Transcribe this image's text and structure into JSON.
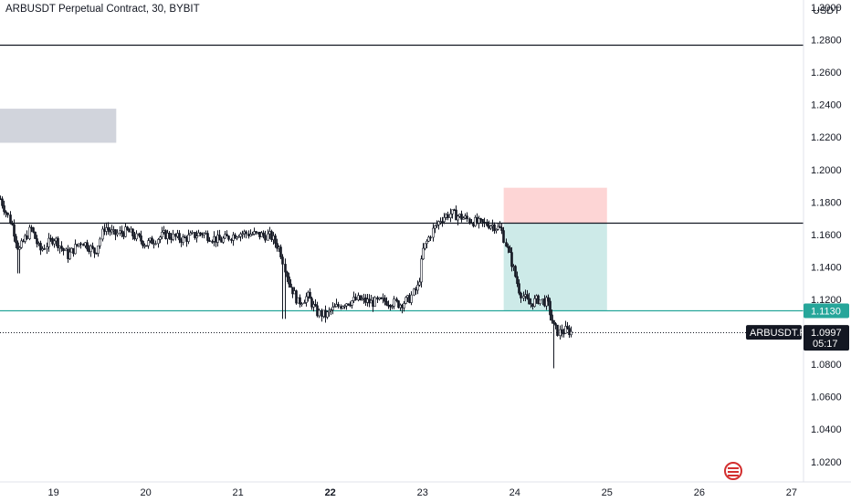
{
  "header": {
    "title": "ARBUSDT Perpetual Contract, 30, BYBIT"
  },
  "axis": {
    "currency": "USDT"
  },
  "current_price": {
    "symbol": "ARBUSDT.P",
    "value": "1.0997",
    "countdown": "05:17"
  },
  "level_label": {
    "value": "1.1130"
  },
  "colors": {
    "level_line": "#131722",
    "teal_line": "#26a69a",
    "profit_zone": "#cdeae8",
    "loss_zone": "#fdd5d5",
    "gray_box": "#d1d4dc",
    "teal_badge": "#26a69a",
    "price_badge": "#131722"
  },
  "chart_data": {
    "type": "candlestick",
    "title": "ARBUSDT Perpetual Contract, 30, BYBIT",
    "y_unit": "USDT",
    "y_ticks": [
      "1.3000",
      "1.2800",
      "1.2600",
      "1.2400",
      "1.2200",
      "1.2000",
      "1.1800",
      "1.1600",
      "1.1400",
      "1.1200",
      "1.0800",
      "1.0600",
      "1.0400",
      "1.0200"
    ],
    "y_range": [
      1.0075,
      1.3045
    ],
    "x_ticks": [
      {
        "label": "19",
        "day": 19,
        "bold": false
      },
      {
        "label": "20",
        "day": 20,
        "bold": false
      },
      {
        "label": "21",
        "day": 21,
        "bold": false
      },
      {
        "label": "22",
        "day": 22,
        "bold": true
      },
      {
        "label": "23",
        "day": 23,
        "bold": false
      },
      {
        "label": "24",
        "day": 24,
        "bold": false
      },
      {
        "label": "25",
        "day": 25,
        "bold": false
      },
      {
        "label": "26",
        "day": 26,
        "bold": false
      },
      {
        "label": "27",
        "day": 27,
        "bold": false
      }
    ],
    "x_range": [
      18.42,
      27.13
    ],
    "horizontal_lines": [
      {
        "price": 1.2771,
        "color": "#131722"
      },
      {
        "price": 1.1672,
        "color": "#131722"
      },
      {
        "price": 1.113,
        "color": "#26a69a"
      },
      {
        "price": 1.0997,
        "color": "#131722",
        "dotted": true
      }
    ],
    "position": {
      "type": "short",
      "entry": 1.1672,
      "stop": 1.1888,
      "target": 1.113,
      "from_day": 23.88,
      "to_day": 25.0
    },
    "gray_zone": {
      "from_day": 18.42,
      "to_day": 19.68,
      "top": 1.2375,
      "bottom": 1.2165
    },
    "price_path": [
      [
        18.42,
        1.182
      ],
      [
        18.55,
        1.165
      ],
      [
        18.62,
        1.15
      ],
      [
        18.75,
        1.164
      ],
      [
        18.85,
        1.15
      ],
      [
        19.0,
        1.158
      ],
      [
        19.15,
        1.147
      ],
      [
        19.3,
        1.156
      ],
      [
        19.45,
        1.149
      ],
      [
        19.55,
        1.165
      ],
      [
        19.65,
        1.16
      ],
      [
        19.8,
        1.162
      ],
      [
        20.0,
        1.154
      ],
      [
        20.2,
        1.16
      ],
      [
        20.4,
        1.157
      ],
      [
        20.6,
        1.161
      ],
      [
        20.8,
        1.156
      ],
      [
        21.0,
        1.161
      ],
      [
        21.2,
        1.16
      ],
      [
        21.35,
        1.159
      ],
      [
        21.45,
        1.151
      ],
      [
        21.55,
        1.13
      ],
      [
        21.65,
        1.118
      ],
      [
        21.75,
        1.122
      ],
      [
        21.85,
        1.112
      ],
      [
        21.95,
        1.11
      ],
      [
        22.0,
        1.113
      ],
      [
        22.15,
        1.118
      ],
      [
        22.3,
        1.12
      ],
      [
        22.45,
        1.118
      ],
      [
        22.6,
        1.119
      ],
      [
        22.75,
        1.117
      ],
      [
        22.85,
        1.12
      ],
      [
        22.95,
        1.128
      ],
      [
        23.0,
        1.15
      ],
      [
        23.1,
        1.162
      ],
      [
        23.2,
        1.17
      ],
      [
        23.3,
        1.173
      ],
      [
        23.45,
        1.17
      ],
      [
        23.6,
        1.167
      ],
      [
        23.75,
        1.166
      ],
      [
        23.85,
        1.163
      ],
      [
        23.95,
        1.145
      ],
      [
        24.05,
        1.125
      ],
      [
        24.15,
        1.117
      ],
      [
        24.25,
        1.12
      ],
      [
        24.35,
        1.118
      ],
      [
        24.42,
        1.103
      ],
      [
        24.47,
        1.0995
      ],
      [
        24.55,
        1.101
      ],
      [
        24.62,
        1.0997
      ]
    ]
  }
}
